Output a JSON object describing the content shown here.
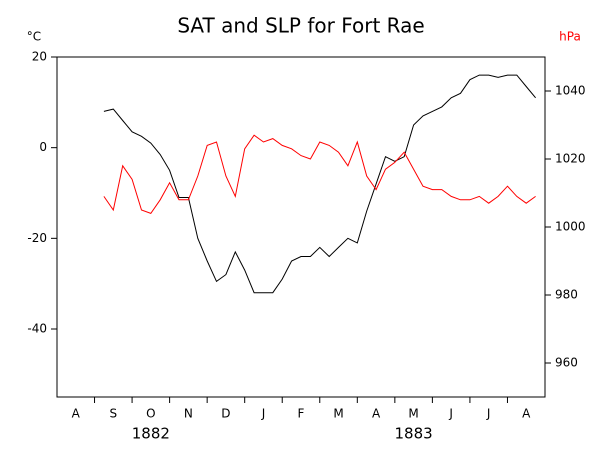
{
  "chart_data": {
    "type": "line",
    "title": "SAT and SLP for Fort Rae",
    "y_label": "°C",
    "y2_label": "hPa",
    "categories": [
      "A",
      "S",
      "O",
      "N",
      "D",
      "J",
      "F",
      "M",
      "A",
      "M",
      "J",
      "J",
      "A"
    ],
    "years": [
      "1882",
      "1883"
    ],
    "xlim": [
      0,
      13
    ],
    "x": [
      1.25,
      1.5,
      1.75,
      2.0,
      2.25,
      2.5,
      2.75,
      3.0,
      3.25,
      3.5,
      3.75,
      4.0,
      4.25,
      4.5,
      4.75,
      5.0,
      5.25,
      5.5,
      5.75,
      6.0,
      6.25,
      6.5,
      6.75,
      7.0,
      7.25,
      7.5,
      7.75,
      8.0,
      8.25,
      8.5,
      8.75,
      9.0,
      9.25,
      9.5,
      9.75,
      10.0,
      10.25,
      10.5,
      10.75,
      11.0,
      11.25,
      11.5,
      11.75,
      12.0,
      12.25,
      12.5,
      12.75
    ],
    "ylim": [
      -55,
      20
    ],
    "yticks": [
      -40,
      -20,
      0,
      20
    ],
    "y2lim": [
      950,
      1050
    ],
    "y2ticks": [
      960,
      980,
      1000,
      1020,
      1040
    ],
    "series": [
      {
        "name": "SAT",
        "color": "#000000",
        "values": [
          8,
          8.5,
          6,
          3.5,
          2.5,
          1,
          -1.5,
          -5,
          -11,
          -11,
          -20,
          -25,
          -29.5,
          -28,
          -23,
          -27,
          -32,
          -32,
          -32,
          -29,
          -25,
          -24,
          -24,
          -22,
          -24,
          -22,
          -20,
          -21,
          -14,
          -8,
          -2,
          -3,
          -2,
          5,
          7,
          8,
          9,
          11,
          12,
          15,
          16,
          16,
          15.5,
          16,
          16,
          13.5,
          11
        ]
      },
      {
        "name": "SLP",
        "color": "#ff0000",
        "axis": "y2",
        "values": [
          1009,
          1005,
          1018,
          1014,
          1005,
          1004,
          1008,
          1013,
          1008,
          1008,
          1015,
          1024,
          1025,
          1015,
          1009,
          1023,
          1027,
          1025,
          1026,
          1024,
          1023,
          1021,
          1020,
          1025,
          1024,
          1022,
          1018,
          1025,
          1015,
          1011,
          1017,
          1019,
          1022,
          1017,
          1012,
          1011,
          1011,
          1009,
          1008,
          1008,
          1009,
          1007,
          1009,
          1012,
          1009,
          1007,
          1009
        ]
      }
    ]
  }
}
